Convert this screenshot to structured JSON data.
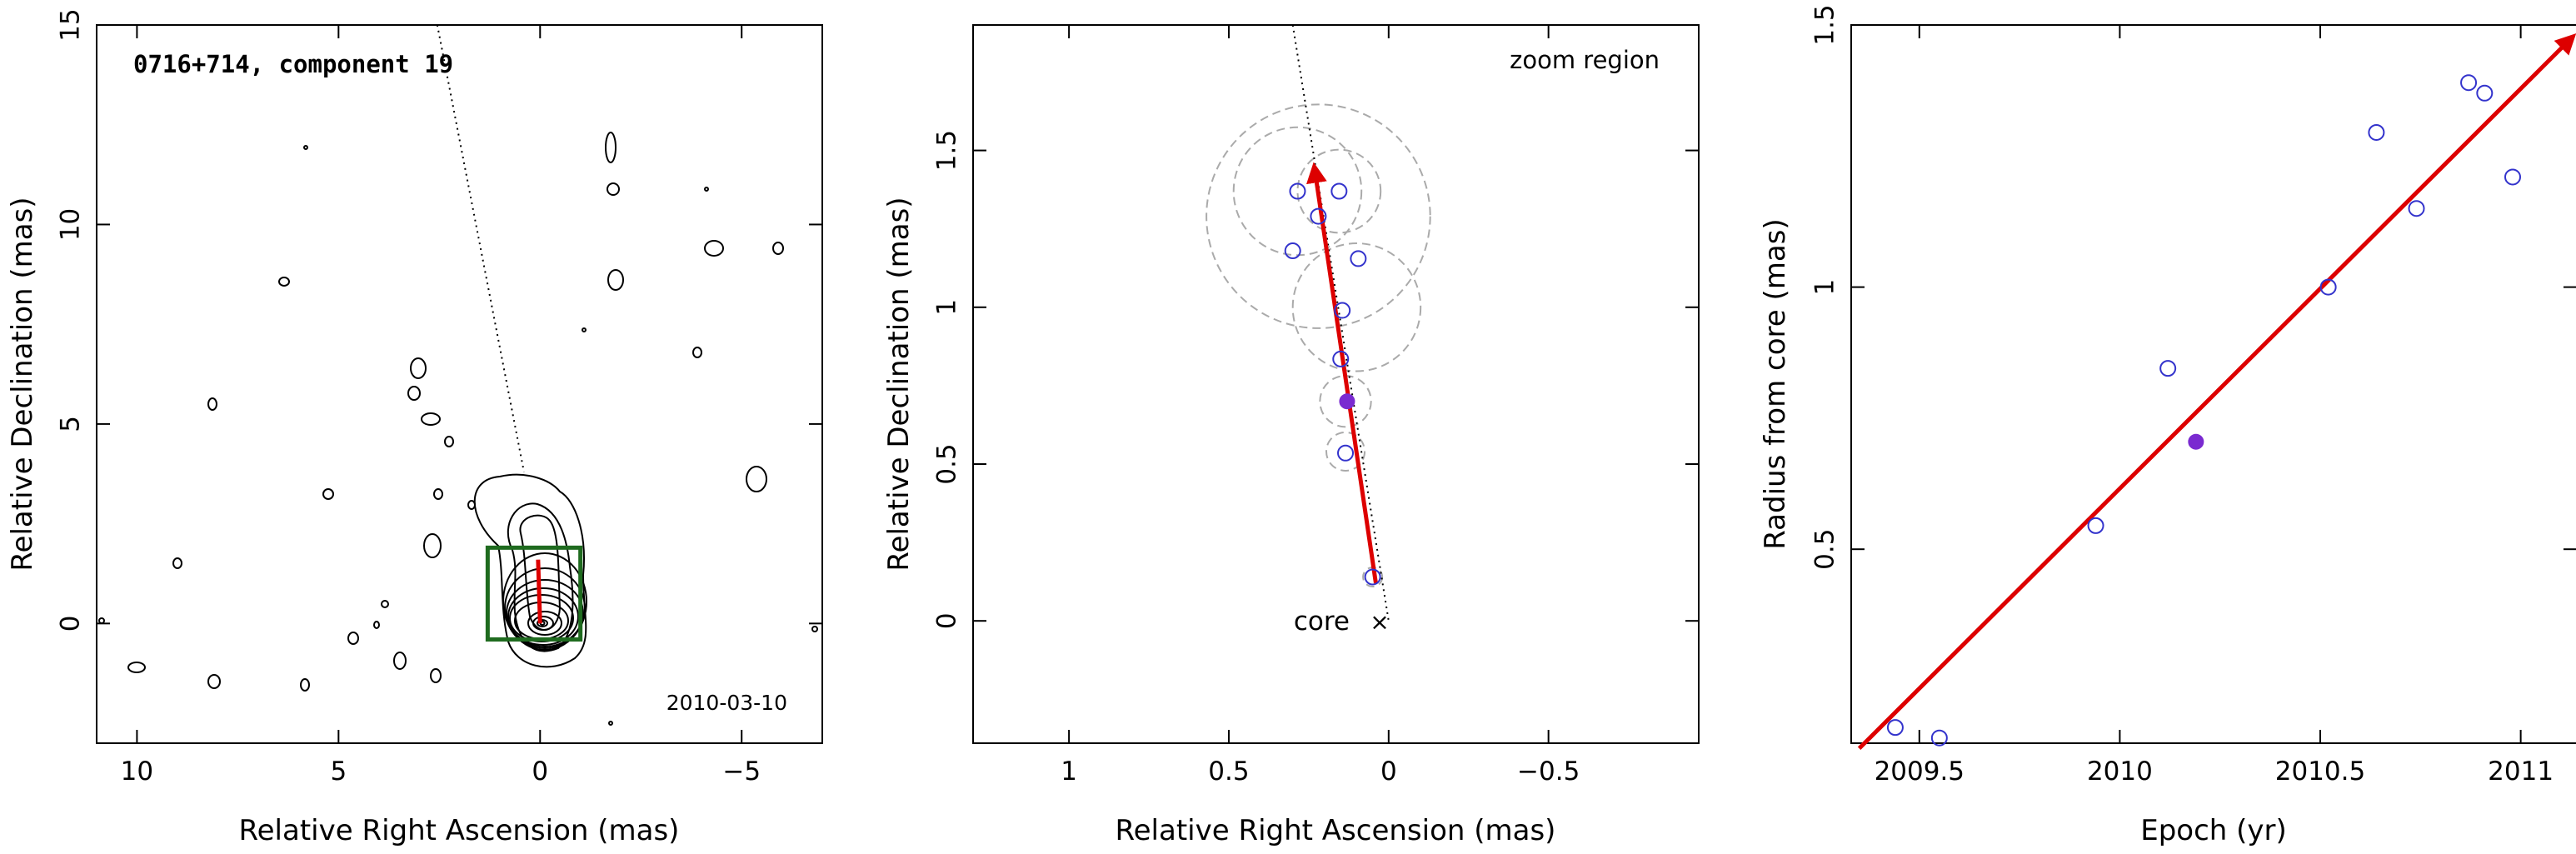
{
  "chart_data": [
    {
      "type": "contour",
      "title": "0716+714, component 19",
      "date_label": "2010-03-10",
      "xlabel": "Relative Right Ascension (mas)",
      "ylabel": "Relative Declination (mas)",
      "xlim": [
        11,
        -7
      ],
      "ylim": [
        -3,
        15
      ],
      "xticks": [
        "10",
        "5",
        "0",
        "−5"
      ],
      "yticks": [
        "0",
        "5",
        "10",
        "15"
      ],
      "zoom_box": {
        "x": [
          1.3,
          -1.0
        ],
        "y": [
          -0.4,
          1.9
        ]
      },
      "motion_vector": {
        "from": [
          0.0,
          0.0
        ],
        "to": [
          0.05,
          1.6
        ]
      },
      "direction_line": {
        "from": [
          2.55,
          15.0
        ],
        "to": [
          0.4,
          3.8
        ]
      },
      "colors": {
        "contours": "#000000",
        "zoom_box": "#1f6b1f",
        "vector": "#dd0000"
      }
    },
    {
      "type": "scatter",
      "annotation": "zoom region",
      "core_label": "core",
      "xlabel": "Relative Right Ascension (mas)",
      "ylabel": "Relative Declination (mas)",
      "xlim": [
        1.3,
        -0.97
      ],
      "ylim": [
        -0.39,
        1.9
      ],
      "xticks": [
        "1",
        "0.5",
        "0",
        "−0.5"
      ],
      "yticks": [
        "0",
        "0.5",
        "1",
        "1.5"
      ],
      "points": [
        {
          "x": 0.285,
          "y": 1.37
        },
        {
          "x": 0.155,
          "y": 1.37
        },
        {
          "x": 0.22,
          "y": 1.29
        },
        {
          "x": 0.3,
          "y": 1.18
        },
        {
          "x": 0.095,
          "y": 1.155
        },
        {
          "x": 0.145,
          "y": 0.99
        },
        {
          "x": 0.15,
          "y": 0.835
        },
        {
          "x": 0.135,
          "y": 0.535
        },
        {
          "x": 0.05,
          "y": 0.14
        }
      ],
      "highlight_point": {
        "x": 0.13,
        "y": 0.7
      },
      "error_circles": [
        {
          "x": 0.285,
          "y": 1.37,
          "r": 0.2
        },
        {
          "x": 0.155,
          "y": 1.37,
          "r": 0.13
        },
        {
          "x": 0.22,
          "y": 1.29,
          "r": 0.35
        },
        {
          "x": 0.1,
          "y": 1.0,
          "r": 0.2
        },
        {
          "x": 0.135,
          "y": 0.7,
          "r": 0.08
        },
        {
          "x": 0.135,
          "y": 0.54,
          "r": 0.06
        },
        {
          "x": 0.05,
          "y": 0.14,
          "r": 0.03
        }
      ],
      "motion_vector": {
        "from": [
          0.04,
          0.12
        ],
        "to": [
          0.23,
          1.43
        ]
      },
      "direction_line": {
        "from": [
          0.3,
          1.9
        ],
        "to": [
          0.0,
          0.0
        ]
      },
      "colors": {
        "points": "#3333cc",
        "highlight": "#7a2ad0",
        "circles": "#aaaaaa",
        "vector": "#dd0000"
      }
    },
    {
      "type": "scatter",
      "xlabel": "Epoch (yr)",
      "ylabel": "Radius from core (mas)",
      "xlim": [
        2009.33,
        2011.14
      ],
      "ylim": [
        0.13,
        1.5
      ],
      "xticks": [
        "2009.5",
        "2010",
        "2010.5",
        "2011"
      ],
      "yticks": [
        "0.5",
        "1",
        "1.5"
      ],
      "points": [
        {
          "x": 2009.44,
          "y": 0.16
        },
        {
          "x": 2009.55,
          "y": 0.14
        },
        {
          "x": 2009.94,
          "y": 0.545
        },
        {
          "x": 2010.12,
          "y": 0.845
        },
        {
          "x": 2010.52,
          "y": 1.0
        },
        {
          "x": 2010.64,
          "y": 1.295
        },
        {
          "x": 2010.74,
          "y": 1.15
        },
        {
          "x": 2010.87,
          "y": 1.39
        },
        {
          "x": 2010.91,
          "y": 1.37
        },
        {
          "x": 2010.98,
          "y": 1.21
        }
      ],
      "highlight_point": {
        "x": 2010.19,
        "y": 0.705
      },
      "fit_line": {
        "from": [
          2009.35,
          0.12
        ],
        "to": [
          2011.12,
          1.47
        ]
      },
      "colors": {
        "points": "#3333cc",
        "highlight": "#7a2ad0",
        "fit": "#dd0000"
      }
    }
  ]
}
